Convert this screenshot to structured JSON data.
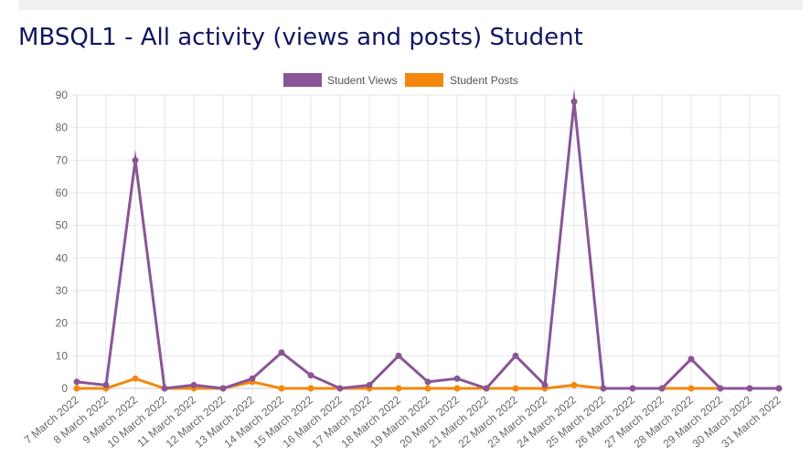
{
  "page": {
    "title": "MBSQL1 - All activity (views and posts) Student"
  },
  "chart_data": {
    "type": "line",
    "title": "MBSQL1 - All activity (views and posts) Student",
    "xlabel": "",
    "ylabel": "",
    "ylim": [
      0,
      90
    ],
    "yticks": [
      0,
      10,
      20,
      30,
      40,
      50,
      60,
      70,
      80,
      90
    ],
    "grid": true,
    "legend_position": "top-center",
    "categories": [
      "7 March 2022",
      "8 March 2022",
      "9 March 2022",
      "10 March 2022",
      "11 March 2022",
      "12 March 2022",
      "13 March 2022",
      "14 March 2022",
      "15 March 2022",
      "16 March 2022",
      "17 March 2022",
      "18 March 2022",
      "19 March 2022",
      "20 March 2022",
      "21 March 2022",
      "22 March 2022",
      "23 March 2022",
      "24 March 2022",
      "25 March 2022",
      "26 March 2022",
      "27 March 2022",
      "28 March 2022",
      "29 March 2022",
      "30 March 2022",
      "31 March 2022"
    ],
    "series": [
      {
        "name": "Student Views",
        "color": "#8a5597",
        "values": [
          2,
          1,
          70,
          0,
          1,
          0,
          3,
          11,
          4,
          0,
          1,
          10,
          2,
          3,
          0,
          10,
          1,
          88,
          0,
          0,
          0,
          9,
          0,
          0,
          0
        ]
      },
      {
        "name": "Student Posts",
        "color": "#f3880c",
        "values": [
          0,
          0,
          3,
          0,
          0,
          0,
          2,
          0,
          0,
          0,
          0,
          0,
          0,
          0,
          0,
          0,
          0,
          1,
          0,
          0,
          0,
          0,
          0,
          0,
          0
        ]
      }
    ]
  }
}
